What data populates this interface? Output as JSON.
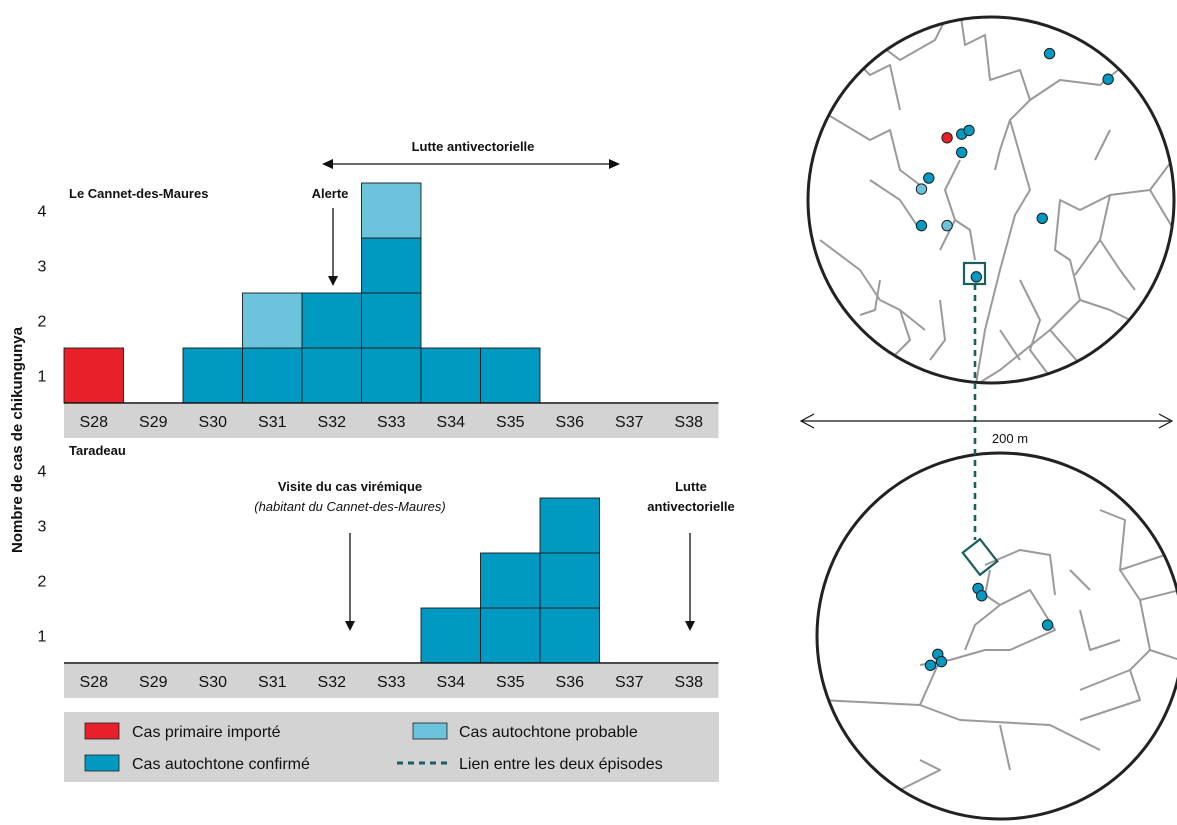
{
  "y_axis_label": "Nombre de cas de chikungunya",
  "colors": {
    "Cas primaire importé": "#e8202a",
    "Cas autochtone confirmé": "#0099c2",
    "Cas autochtone probable": "#6bc3dc",
    "grid_band": "#d3d3d3",
    "map_road": "#9a9a9a",
    "link": "#1a5e5e"
  },
  "legend": {
    "items": [
      {
        "label": "Cas primaire importé",
        "type": "Cas primaire importé"
      },
      {
        "label": "Cas autochtone probable",
        "type": "Cas autochtone probable"
      },
      {
        "label": "Cas autochtone confirmé",
        "type": "Cas autochtone confirmé"
      },
      {
        "label": "Lien entre les deux épisodes",
        "type": "link"
      }
    ]
  },
  "chart_data": [
    {
      "type": "bar",
      "stacked": true,
      "title": "Le Cannet-des-Maures",
      "categories": [
        "S28",
        "S29",
        "S30",
        "S31",
        "S32",
        "S33",
        "S34",
        "S35",
        "S36",
        "S37",
        "S38"
      ],
      "ylim": [
        0,
        4
      ],
      "yticks": [
        1,
        2,
        3,
        4
      ],
      "series": [
        {
          "name": "Cas primaire importé",
          "values": [
            1,
            0,
            0,
            0,
            0,
            0,
            0,
            0,
            0,
            0,
            0
          ]
        },
        {
          "name": "Cas autochtone confirmé",
          "values": [
            0,
            0,
            1,
            1,
            2,
            3,
            1,
            1,
            0,
            0,
            0
          ]
        },
        {
          "name": "Cas autochtone probable",
          "values": [
            0,
            0,
            0,
            1,
            0,
            1,
            0,
            0,
            0,
            0,
            0
          ]
        }
      ],
      "annotations": [
        {
          "text": "Alerte",
          "week": "S32",
          "arrow": "down"
        },
        {
          "text": "Lutte antivectorielle",
          "from": "S32",
          "to": "S37",
          "arrow": "double"
        }
      ]
    },
    {
      "type": "bar",
      "stacked": true,
      "title": "Taradeau",
      "categories": [
        "S28",
        "S29",
        "S30",
        "S31",
        "S32",
        "S33",
        "S34",
        "S35",
        "S36",
        "S37",
        "S38"
      ],
      "ylim": [
        0,
        4
      ],
      "yticks": [
        1,
        2,
        3,
        4
      ],
      "series": [
        {
          "name": "Cas autochtone confirmé",
          "values": [
            0,
            0,
            0,
            0,
            0,
            0,
            1,
            2,
            3,
            0,
            0
          ]
        }
      ],
      "annotations": [
        {
          "text": "Visite du cas virémique",
          "subtext": "(habitant du Cannet-des-Maures)",
          "week": "S32",
          "arrow": "down"
        },
        {
          "text": "Lutte",
          "text2": "antivectorielle",
          "week": "S38",
          "arrow": "down"
        }
      ]
    }
  ],
  "map": {
    "scale_label": "200 m",
    "top_points": [
      {
        "type": "Cas autochtone confirmé",
        "u": 0.66,
        "v": 0.1
      },
      {
        "type": "Cas autochtone confirmé",
        "u": 0.82,
        "v": 0.17
      },
      {
        "type": "Cas primaire importé",
        "u": 0.38,
        "v": 0.33
      },
      {
        "type": "Cas autochtone confirmé",
        "u": 0.42,
        "v": 0.32
      },
      {
        "type": "Cas autochtone confirmé",
        "u": 0.44,
        "v": 0.31
      },
      {
        "type": "Cas autochtone confirmé",
        "u": 0.42,
        "v": 0.37
      },
      {
        "type": "Cas autochtone confirmé",
        "u": 0.33,
        "v": 0.44
      },
      {
        "type": "Cas autochtone probable",
        "u": 0.31,
        "v": 0.47
      },
      {
        "type": "Cas autochtone confirmé",
        "u": 0.31,
        "v": 0.57
      },
      {
        "type": "Cas autochtone probable",
        "u": 0.38,
        "v": 0.57
      },
      {
        "type": "Cas autochtone confirmé",
        "u": 0.64,
        "v": 0.55
      },
      {
        "type": "Cas autochtone confirmé",
        "u": 0.46,
        "v": 0.71
      }
    ],
    "bottom_points": [
      {
        "type": "Cas autochtone confirmé",
        "u": 0.44,
        "v": 0.37
      },
      {
        "type": "Cas autochtone confirmé",
        "u": 0.45,
        "v": 0.39
      },
      {
        "type": "Cas autochtone confirmé",
        "u": 0.63,
        "v": 0.47
      },
      {
        "type": "Cas autochtone confirmé",
        "u": 0.33,
        "v": 0.55
      },
      {
        "type": "Cas autochtone confirmé",
        "u": 0.31,
        "v": 0.58
      },
      {
        "type": "Cas autochtone confirmé",
        "u": 0.34,
        "v": 0.57
      }
    ]
  }
}
